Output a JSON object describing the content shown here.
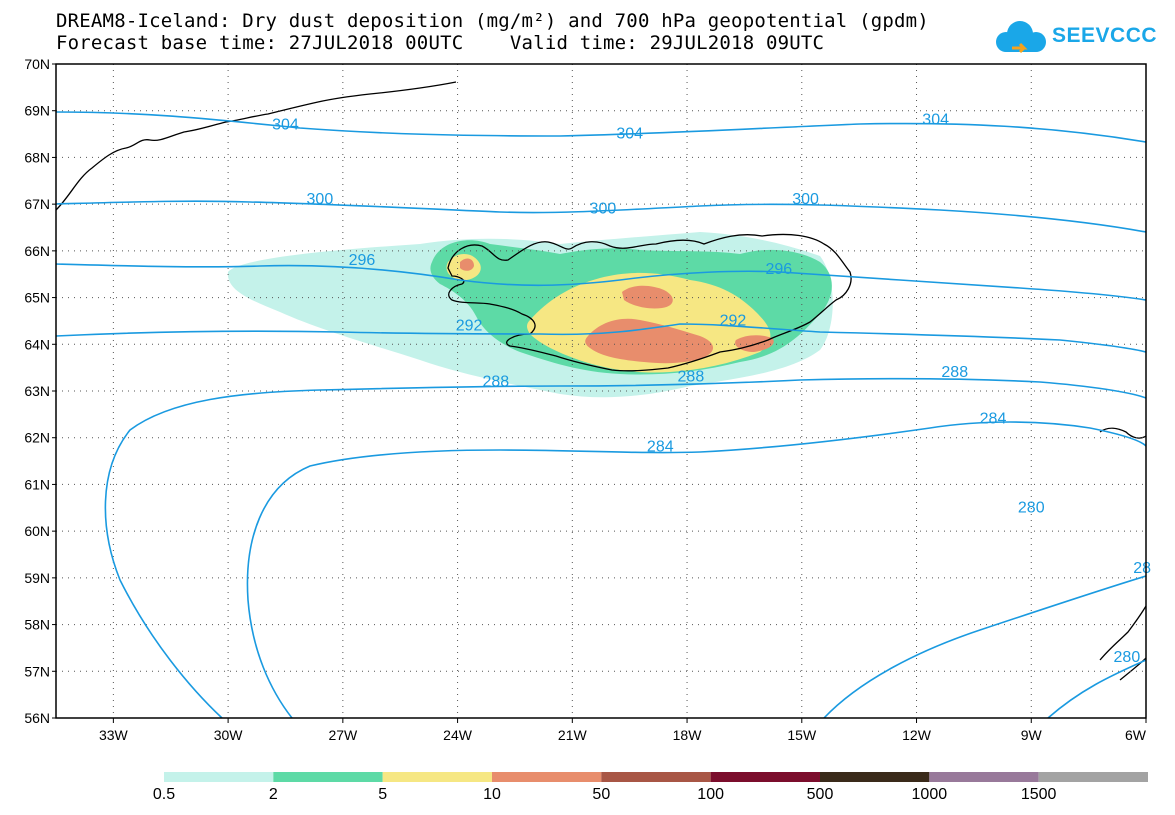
{
  "header": {
    "title": "DREAM8-Iceland: Dry dust deposition (mg/m²) and 700 hPa geopotential (gpdm)",
    "subtitle": "Forecast base time: 27JUL2018 00UTC    Valid time: 29JUL2018 09UTC"
  },
  "logo": {
    "text": "SEEVCCC",
    "icon": "cloud-icon"
  },
  "map": {
    "lat_range": [
      56,
      70
    ],
    "lon_range": [
      -34.5,
      -6
    ],
    "lat_labels": [
      "70N",
      "69N",
      "68N",
      "67N",
      "66N",
      "65N",
      "64N",
      "63N",
      "62N",
      "61N",
      "60N",
      "59N",
      "58N",
      "57N",
      "56N"
    ],
    "lon_labels": [
      "33W",
      "30W",
      "27W",
      "24W",
      "21W",
      "18W",
      "15W",
      "12W",
      "9W",
      "6W"
    ],
    "grid": true,
    "contour_color": "#1a9ae0",
    "contour_labels": [
      {
        "text": "304",
        "lon": -28.5,
        "lat": 68.6
      },
      {
        "text": "304",
        "lon": -19.5,
        "lat": 68.4
      },
      {
        "text": "304",
        "lon": -11.5,
        "lat": 68.7
      },
      {
        "text": "300",
        "lon": -27.6,
        "lat": 67.0
      },
      {
        "text": "300",
        "lon": -20.2,
        "lat": 66.8
      },
      {
        "text": "300",
        "lon": -14.9,
        "lat": 67.0
      },
      {
        "text": "296",
        "lon": -26.5,
        "lat": 65.7
      },
      {
        "text": "296",
        "lon": -15.6,
        "lat": 65.5
      },
      {
        "text": "292",
        "lon": -23.7,
        "lat": 64.3
      },
      {
        "text": "292",
        "lon": -16.8,
        "lat": 64.4
      },
      {
        "text": "288",
        "lon": -23.0,
        "lat": 63.1
      },
      {
        "text": "288",
        "lon": -17.9,
        "lat": 63.2
      },
      {
        "text": "288",
        "lon": -11.0,
        "lat": 63.3
      },
      {
        "text": "284",
        "lon": -18.7,
        "lat": 61.7
      },
      {
        "text": "284",
        "lon": -10.0,
        "lat": 62.3
      },
      {
        "text": "280",
        "lon": -9.0,
        "lat": 60.4
      },
      {
        "text": "28",
        "lon": -6.1,
        "lat": 59.1
      },
      {
        "text": "280",
        "lon": -6.5,
        "lat": 57.2
      }
    ]
  },
  "legend": {
    "labels": [
      "0.5",
      "2",
      "5",
      "10",
      "50",
      "100",
      "500",
      "1000",
      "1500"
    ],
    "colors": [
      "#c4f2ea",
      "#5ddaa6",
      "#f6e783",
      "#e88d6c",
      "#a85645",
      "#7b0d2c",
      "#3a2a1a",
      "#98799a",
      "#a3a3a3"
    ]
  }
}
